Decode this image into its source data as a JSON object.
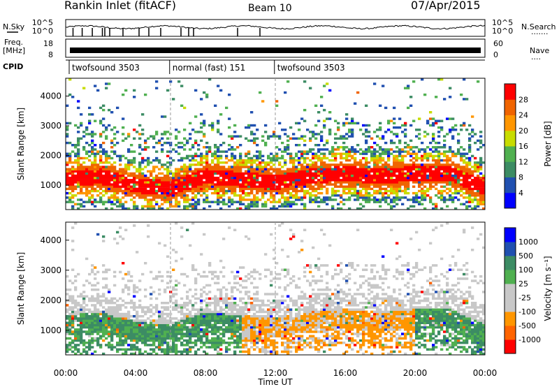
{
  "header": {
    "station": "Rankin Inlet (fitACF)",
    "beam": "Beam 10",
    "date": "07/Apr/2015"
  },
  "housekeeping": {
    "nsky_label": "N.Sky",
    "nsearch_label": "N.Search",
    "nsearch_dots": "·······",
    "left_ticks_top": [
      "10^5",
      "10^0"
    ],
    "right_ticks_top": [
      "10^5",
      "10^0"
    ],
    "freq_label": "Freq.",
    "freq_unit": "[MHz]",
    "freq_ticks": [
      "18",
      "8"
    ],
    "nave_label": "Nave",
    "nave_dots": "····",
    "nave_ticks": [
      "60",
      "0"
    ],
    "cpid_label": "CPID",
    "cpid_modes": [
      {
        "label": "twofsound 3503",
        "start_hour": 0.2,
        "end_hour": 5.95
      },
      {
        "label": "normal (fast) 151",
        "start_hour": 5.95,
        "end_hour": 11.95
      },
      {
        "label": "twofsound 3503",
        "start_hour": 11.95,
        "end_hour": 24
      }
    ]
  },
  "colors": {
    "power": [
      "#0000ff",
      "#2050b0",
      "#3c8c64",
      "#50b050",
      "#c8dc00",
      "#ff9600",
      "#f06400",
      "#ff0000"
    ],
    "velocity": [
      "#ff0000",
      "#ff6400",
      "#ff9600",
      "#c8c8c8",
      "#c8c8c8",
      "#50b050",
      "#3c8c64",
      "#2050b0",
      "#0000ff"
    ]
  },
  "chart_data": [
    {
      "type": "heatmap",
      "title": "Power",
      "xlabel": "",
      "ylabel": "Slant Range [km]",
      "xlim": [
        0,
        24
      ],
      "ylim": [
        180,
        4600
      ],
      "yticks": [
        "1000",
        "2000",
        "3000",
        "4000"
      ],
      "colorbar_label": "Power [dB]",
      "colorbar_ticks": [
        "4",
        "8",
        "12",
        "16",
        "20",
        "24",
        "28"
      ],
      "colorbar_range": [
        0,
        30
      ],
      "value_range": [
        0,
        30
      ],
      "strong_echo_band_km": {
        "hours": [
          0,
          2,
          4,
          6,
          8,
          10,
          12,
          14,
          16,
          18,
          20,
          22,
          24
        ],
        "center": [
          1200,
          1300,
          1000,
          900,
          1300,
          1200,
          1100,
          1300,
          1400,
          1300,
          1400,
          1400,
          900
        ]
      }
    },
    {
      "type": "heatmap",
      "title": "Velocity",
      "xlabel": "Time UT",
      "ylabel": "Slant Range [km]",
      "xlim": [
        0,
        24
      ],
      "ylim": [
        180,
        4600
      ],
      "xticks": [
        "00:00",
        "04:00",
        "08:00",
        "12:00",
        "16:00",
        "20:00",
        "00:00"
      ],
      "yticks": [
        "1000",
        "2000",
        "3000",
        "4000"
      ],
      "colorbar_label": "Velocity [m s⁻¹]",
      "colorbar_ticks": [
        "1000",
        "500",
        "100",
        "25",
        "-25",
        "-100",
        "-500",
        "-1000"
      ],
      "value_range": [
        -1000,
        1000
      ]
    }
  ]
}
